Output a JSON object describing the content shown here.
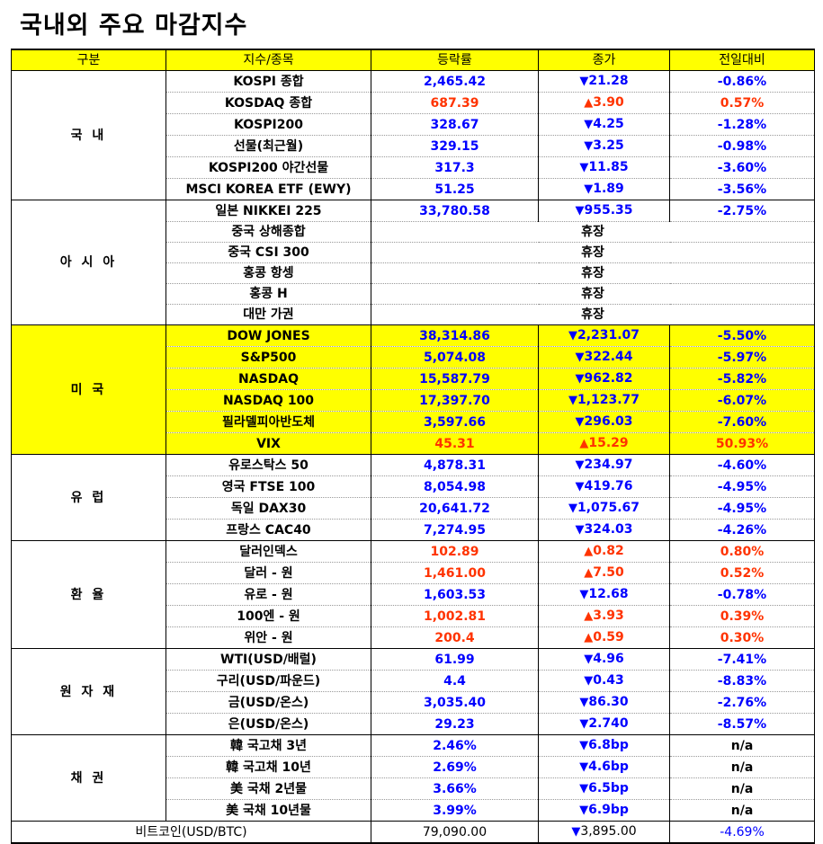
{
  "title": "국내외 주요 마감지수",
  "headers": [
    "구분",
    "지수/종목",
    "등락률",
    "종가",
    "전일대비"
  ],
  "groups": [
    {
      "name": "국 내",
      "highlight": false,
      "rows": [
        {
          "item": "KOSPI 종합",
          "rate": "2,465.42",
          "rate_dir": "down",
          "close": "21.28",
          "close_dir": "down",
          "change": "-0.86%",
          "change_dir": "down"
        },
        {
          "item": "KOSDAQ 종합",
          "rate": "687.39",
          "rate_dir": "up",
          "close": "3.90",
          "close_dir": "up",
          "change": "0.57%",
          "change_dir": "up"
        },
        {
          "item": "KOSPI200",
          "rate": "328.67",
          "rate_dir": "down",
          "close": "4.25",
          "close_dir": "down",
          "change": "-1.28%",
          "change_dir": "down"
        },
        {
          "item": "선물(최근월)",
          "rate": "329.15",
          "rate_dir": "down",
          "close": "3.25",
          "close_dir": "down",
          "change": "-0.98%",
          "change_dir": "down"
        },
        {
          "item": "KOSPI200 야간선물",
          "rate": "317.3",
          "rate_dir": "down",
          "close": "11.85",
          "close_dir": "down",
          "change": "-3.60%",
          "change_dir": "down"
        },
        {
          "item": "MSCI KOREA ETF (EWY)",
          "rate": "51.25",
          "rate_dir": "down",
          "close": "1.89",
          "close_dir": "down",
          "change": "-3.56%",
          "change_dir": "down"
        }
      ]
    },
    {
      "name": "아 시 아",
      "highlight": false,
      "rows": [
        {
          "item": "일본 NIKKEI 225",
          "rate": "33,780.58",
          "rate_dir": "down",
          "close": "955.35",
          "close_dir": "down",
          "change": "-2.75%",
          "change_dir": "down"
        },
        {
          "item": "중국 상해종합",
          "holiday": "휴장"
        },
        {
          "item": "중국 CSI 300",
          "holiday": "휴장"
        },
        {
          "item": "홍콩 항셍",
          "holiday": "휴장"
        },
        {
          "item": "홍콩 H",
          "holiday": "휴장"
        },
        {
          "item": "대만 가권",
          "holiday": "휴장"
        }
      ]
    },
    {
      "name": "미 국",
      "highlight": true,
      "rows": [
        {
          "item": "DOW JONES",
          "rate": "38,314.86",
          "rate_dir": "down",
          "close": "2,231.07",
          "close_dir": "down",
          "change": "-5.50%",
          "change_dir": "down"
        },
        {
          "item": "S&P500",
          "rate": "5,074.08",
          "rate_dir": "down",
          "close": "322.44",
          "close_dir": "down",
          "change": "-5.97%",
          "change_dir": "down"
        },
        {
          "item": "NASDAQ",
          "rate": "15,587.79",
          "rate_dir": "down",
          "close": "962.82",
          "close_dir": "down",
          "change": "-5.82%",
          "change_dir": "down"
        },
        {
          "item": "NASDAQ 100",
          "rate": "17,397.70",
          "rate_dir": "down",
          "close": "1,123.77",
          "close_dir": "down",
          "change": "-6.07%",
          "change_dir": "down"
        },
        {
          "item": "필라델피아반도체",
          "rate": "3,597.66",
          "rate_dir": "down",
          "close": "296.03",
          "close_dir": "down",
          "change": "-7.60%",
          "change_dir": "down"
        },
        {
          "item": "VIX",
          "rate": "45.31",
          "rate_dir": "up",
          "close": "15.29",
          "close_dir": "up",
          "change": "50.93%",
          "change_dir": "up"
        }
      ]
    },
    {
      "name": "유 럽",
      "highlight": false,
      "rows": [
        {
          "item": "유로스탁스 50",
          "rate": "4,878.31",
          "rate_dir": "down",
          "close": "234.97",
          "close_dir": "down",
          "change": "-4.60%",
          "change_dir": "down"
        },
        {
          "item": "영국 FTSE 100",
          "rate": "8,054.98",
          "rate_dir": "down",
          "close": "419.76",
          "close_dir": "down",
          "change": "-4.95%",
          "change_dir": "down"
        },
        {
          "item": "독일 DAX30",
          "rate": "20,641.72",
          "rate_dir": "down",
          "close": "1,075.67",
          "close_dir": "down",
          "change": "-4.95%",
          "change_dir": "down"
        },
        {
          "item": "프랑스 CAC40",
          "rate": "7,274.95",
          "rate_dir": "down",
          "close": "324.03",
          "close_dir": "down",
          "change": "-4.26%",
          "change_dir": "down"
        }
      ]
    },
    {
      "name": "환 율",
      "highlight": false,
      "rows": [
        {
          "item": "달러인덱스",
          "rate": "102.89",
          "rate_dir": "up",
          "close": "0.82",
          "close_dir": "up",
          "change": "0.80%",
          "change_dir": "up"
        },
        {
          "item": "달러 - 원",
          "rate": "1,461.00",
          "rate_dir": "up",
          "close": "7.50",
          "close_dir": "up",
          "change": "0.52%",
          "change_dir": "up"
        },
        {
          "item": "유로 - 원",
          "rate": "1,603.53",
          "rate_dir": "down",
          "close": "12.68",
          "close_dir": "down",
          "change": "-0.78%",
          "change_dir": "down"
        },
        {
          "item": "100엔 - 원",
          "rate": "1,002.81",
          "rate_dir": "up",
          "close": "3.93",
          "close_dir": "up",
          "change": "0.39%",
          "change_dir": "up"
        },
        {
          "item": "위안 - 원",
          "rate": "200.4",
          "rate_dir": "up",
          "close": "0.59",
          "close_dir": "up",
          "change": "0.30%",
          "change_dir": "up"
        }
      ]
    },
    {
      "name": "원 자 재",
      "highlight": false,
      "rows": [
        {
          "item": "WTI(USD/배럴)",
          "rate": "61.99",
          "rate_dir": "down",
          "close": "4.96",
          "close_dir": "down",
          "change": "-7.41%",
          "change_dir": "down"
        },
        {
          "item": "구리(USD/파운드)",
          "rate": "4.4",
          "rate_dir": "down",
          "close": "0.43",
          "close_dir": "down",
          "change": "-8.83%",
          "change_dir": "down"
        },
        {
          "item": "금(USD/온스)",
          "rate": "3,035.40",
          "rate_dir": "down",
          "close": "86.30",
          "close_dir": "down",
          "change": "-2.76%",
          "change_dir": "down"
        },
        {
          "item": "은(USD/온스)",
          "rate": "29.23",
          "rate_dir": "down",
          "close": "2.740",
          "close_dir": "down",
          "change": "-8.57%",
          "change_dir": "down"
        }
      ]
    },
    {
      "name": "채 권",
      "highlight": false,
      "rows": [
        {
          "item": "韓 국고채 3년",
          "rate": "2.46%",
          "rate_dir": "down",
          "close": "6.8bp",
          "close_dir": "down",
          "change": "n/a",
          "change_dir": "neutral"
        },
        {
          "item": "韓 국고채 10년",
          "rate": "2.69%",
          "rate_dir": "down",
          "close": "4.6bp",
          "close_dir": "down",
          "change": "n/a",
          "change_dir": "neutral"
        },
        {
          "item": "美 국채 2년물",
          "rate": "3.66%",
          "rate_dir": "down",
          "close": "6.5bp",
          "close_dir": "down",
          "change": "n/a",
          "change_dir": "neutral"
        },
        {
          "item": "美 국채 10년물",
          "rate": "3.99%",
          "rate_dir": "down",
          "close": "6.9bp",
          "close_dir": "down",
          "change": "n/a",
          "change_dir": "neutral"
        }
      ]
    }
  ],
  "bitcoin": {
    "item": "비트코인(USD/BTC)",
    "rate": "79,090.00",
    "rate_dir": "neutral",
    "close": "3,895.00",
    "close_dir": "down",
    "change": "-4.69%",
    "change_dir": "down"
  }
}
